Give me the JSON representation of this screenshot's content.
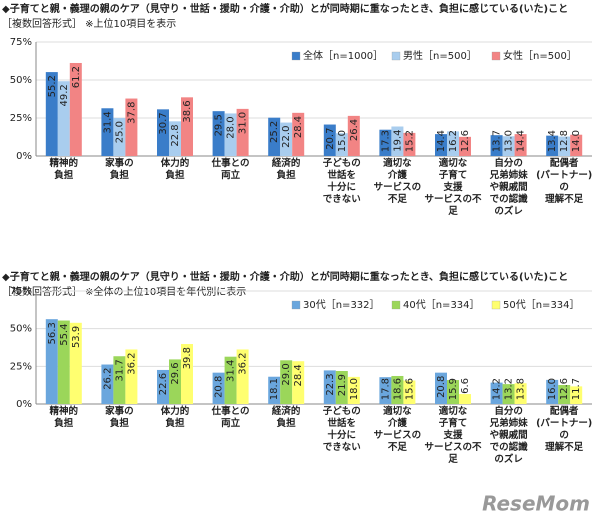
{
  "chart_data": [
    {
      "type": "bar",
      "title": "◆子育てと親・義理の親のケア（見守り・世話・援助・介護・介助）とが同時期に重なったとき、負担に感じている(いた)こと",
      "subtitle": "［複数回答形式］ ※上位10項目を表示",
      "categories": [
        "精神的\n負担",
        "家事の\n負担",
        "体力的\n負担",
        "仕事との\n両立",
        "経済的\n負担",
        "子どもの\n世話を\n十分に\nできない",
        "適切な\n介護\nサービスの\n不足",
        "適切な\n子育て\n支援\nサービスの不足",
        "自分の\n兄弟姉妹\nや親戚間\nでの認識\nのズレ",
        "配偶者\n(パートナー)の\n理解不足"
      ],
      "series": [
        {
          "name": "全体［n=1000］",
          "color": "#3a7dc9",
          "values": [
            55.2,
            31.4,
            30.7,
            29.5,
            25.2,
            20.7,
            17.3,
            14.4,
            13.7,
            13.4
          ],
          "value_labels": [
            "55.2",
            "31.4",
            "30.7",
            "29.5",
            "25.2",
            "20.7",
            "17.3",
            "14.4",
            "13.7",
            "13.4"
          ]
        },
        {
          "name": "男性［n=500］",
          "color": "#a9cdee",
          "values": [
            49.2,
            25.0,
            22.8,
            28.0,
            22.0,
            15.0,
            19.4,
            16.2,
            13.0,
            12.8
          ],
          "value_labels": [
            "49.2",
            "25.0",
            "22.8",
            "28.0",
            "22.0",
            "15.0",
            "19.4",
            "16.2",
            "13.0",
            "12.8"
          ]
        },
        {
          "name": "女性［n=500］",
          "color": "#f28484",
          "values": [
            61.2,
            37.8,
            38.6,
            31.0,
            28.4,
            26.4,
            15.2,
            12.6,
            14.4,
            14.0
          ],
          "value_labels": [
            "61.2",
            "37.8",
            "38.6",
            "31.0",
            "28.4",
            "26.4",
            "15.2",
            "12.6",
            "14.4",
            "14.0"
          ]
        }
      ],
      "ylim": [
        0,
        75
      ],
      "yticks": [
        {
          "value": 0,
          "label": "0%"
        },
        {
          "value": 25,
          "label": "25%"
        },
        {
          "value": 50,
          "label": "50%"
        },
        {
          "value": 75,
          "label": "75%"
        }
      ],
      "grid": true,
      "legend": "top-right"
    },
    {
      "type": "bar",
      "title": "◆子育てと親・義理の親のケア（見守り・世話・援助・介護・介助）とが同時期に重なったとき、負担に感じている(いた)こと",
      "subtitle": "［複数回答形式］ ※全体の上位10項目を年代別に表示",
      "categories": [
        "精神的\n負担",
        "家事の\n負担",
        "体力的\n負担",
        "仕事との\n両立",
        "経済的\n負担",
        "子どもの\n世話を\n十分に\nできない",
        "適切な\n介護\nサービスの\n不足",
        "適切な\n子育て\n支援\nサービスの不足",
        "自分の\n兄弟姉妹\nや親戚間\nでの認識\nのズレ",
        "配偶者\n(パートナー)の\n理解不足"
      ],
      "series": [
        {
          "name": "30代［n=332］",
          "color": "#6aa6dd",
          "values": [
            56.3,
            26.2,
            22.6,
            20.8,
            18.1,
            22.3,
            17.8,
            20.8,
            14.2,
            16.0
          ],
          "value_labels": [
            "56.3",
            "26.2",
            "22.6",
            "20.8",
            "18.1",
            "22.3",
            "17.8",
            "20.8",
            "14.2",
            "16.0"
          ]
        },
        {
          "name": "40代［n=334］",
          "color": "#9bd65a",
          "values": [
            55.4,
            31.7,
            29.6,
            31.4,
            29.0,
            21.9,
            18.6,
            15.9,
            13.2,
            12.6
          ],
          "value_labels": [
            "55.4",
            "31.7",
            "29.6",
            "31.4",
            "29.0",
            "21.9",
            "18.6",
            "15.9",
            "13.2",
            "12.6"
          ]
        },
        {
          "name": "50代［n=334］",
          "color": "#ffff70",
          "values": [
            53.9,
            36.2,
            39.8,
            36.2,
            28.4,
            18.0,
            15.6,
            6.6,
            13.8,
            11.7
          ],
          "value_labels": [
            "53.9",
            "36.2",
            "39.8",
            "36.2",
            "28.4",
            "18.0",
            "15.6",
            "6.6",
            "13.8",
            "11.7"
          ]
        }
      ],
      "ylim": [
        0,
        75
      ],
      "yticks": [
        {
          "value": 0,
          "label": "0%"
        },
        {
          "value": 25,
          "label": "25%"
        },
        {
          "value": 50,
          "label": "50%"
        },
        {
          "value": 75,
          "label": "75%"
        }
      ],
      "grid": true,
      "legend": "top-right"
    }
  ],
  "watermark": "ReseMom"
}
